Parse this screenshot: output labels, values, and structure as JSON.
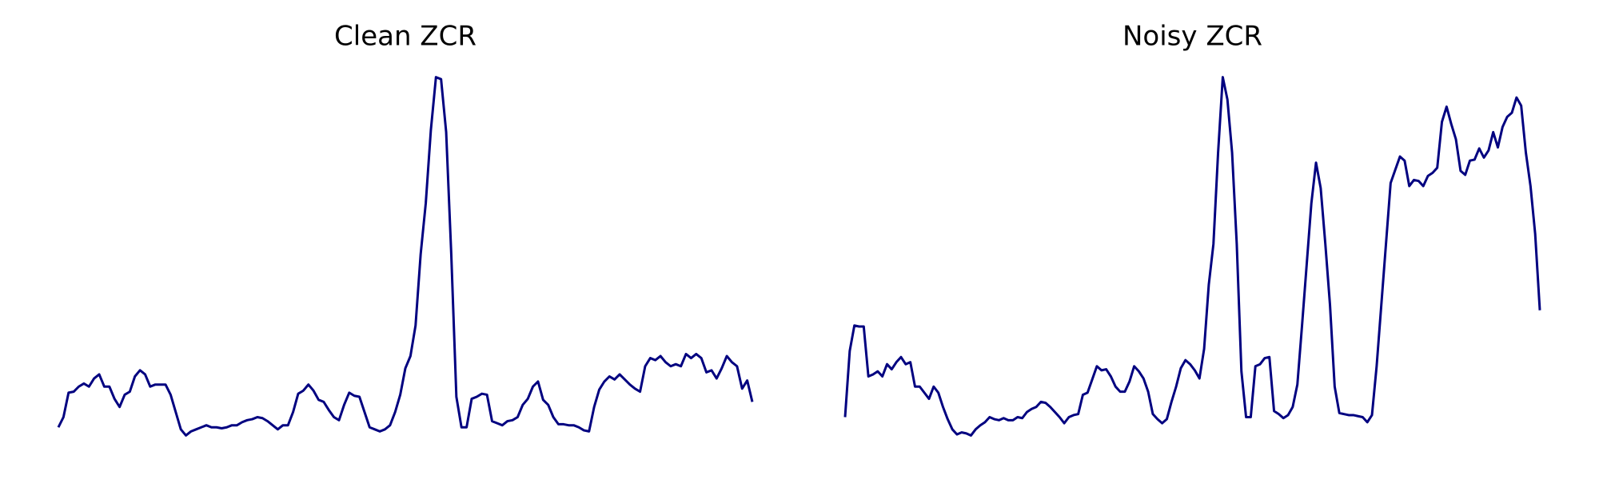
{
  "chart_data": [
    {
      "type": "line",
      "title": "Clean ZCR",
      "color": "#000080",
      "ylim": [
        0,
        360
      ],
      "values": [
        10,
        20,
        44,
        45,
        50,
        53,
        50,
        58,
        62,
        50,
        50,
        38,
        30,
        42,
        45,
        60,
        66,
        62,
        50,
        52,
        52,
        52,
        42,
        25,
        8,
        2,
        6,
        8,
        10,
        12,
        10,
        10,
        9,
        10,
        12,
        12,
        15,
        17,
        18,
        20,
        19,
        16,
        12,
        8,
        12,
        12,
        25,
        43,
        46,
        52,
        46,
        37,
        35,
        27,
        20,
        17,
        32,
        44,
        41,
        40,
        25,
        10,
        8,
        6,
        8,
        12,
        25,
        42,
        68,
        80,
        110,
        180,
        230,
        302,
        354,
        352,
        300,
        180,
        40,
        10,
        10,
        38,
        40,
        43,
        42,
        16,
        14,
        12,
        16,
        17,
        20,
        32,
        38,
        50,
        55,
        37,
        32,
        20,
        13,
        13,
        12,
        12,
        10,
        7,
        6,
        30,
        47,
        55,
        60,
        57,
        62,
        57,
        52,
        48,
        45,
        70,
        78,
        76,
        80,
        74,
        70,
        72,
        70,
        82,
        78,
        82,
        78,
        64,
        66,
        58,
        68,
        80,
        74,
        70,
        48,
        56,
        35
      ]
    },
    {
      "type": "line",
      "title": "Noisy ZCR",
      "color": "#000080",
      "ylim": [
        0,
        360
      ],
      "values": [
        20,
        85,
        110,
        109,
        109,
        60,
        62,
        65,
        60,
        72,
        67,
        74,
        79,
        72,
        74,
        50,
        50,
        44,
        38,
        50,
        44,
        30,
        18,
        8,
        3,
        5,
        4,
        2,
        8,
        12,
        15,
        20,
        18,
        17,
        19,
        17,
        17,
        20,
        19,
        25,
        28,
        30,
        35,
        34,
        30,
        25,
        20,
        14,
        20,
        22,
        23,
        42,
        44,
        57,
        70,
        66,
        67,
        60,
        50,
        45,
        45,
        55,
        70,
        65,
        58,
        45,
        23,
        18,
        14,
        18,
        35,
        50,
        68,
        76,
        72,
        66,
        58,
        87,
        150,
        190,
        280,
        354,
        332,
        280,
        190,
        65,
        20,
        20,
        70,
        72,
        78,
        79,
        26,
        23,
        19,
        22,
        30,
        52,
        110,
        170,
        230,
        270,
        245,
        190,
        130,
        50,
        24,
        23,
        22,
        22,
        21,
        20,
        15,
        22,
        70,
        130,
        190,
        250,
        263,
        276,
        272,
        247,
        253,
        252,
        247,
        257,
        260,
        265,
        310,
        325,
        308,
        293,
        262,
        258,
        272,
        273,
        284,
        275,
        282,
        300,
        285,
        305,
        315,
        319,
        334,
        326,
        280,
        247,
        200,
        125
      ]
    }
  ]
}
